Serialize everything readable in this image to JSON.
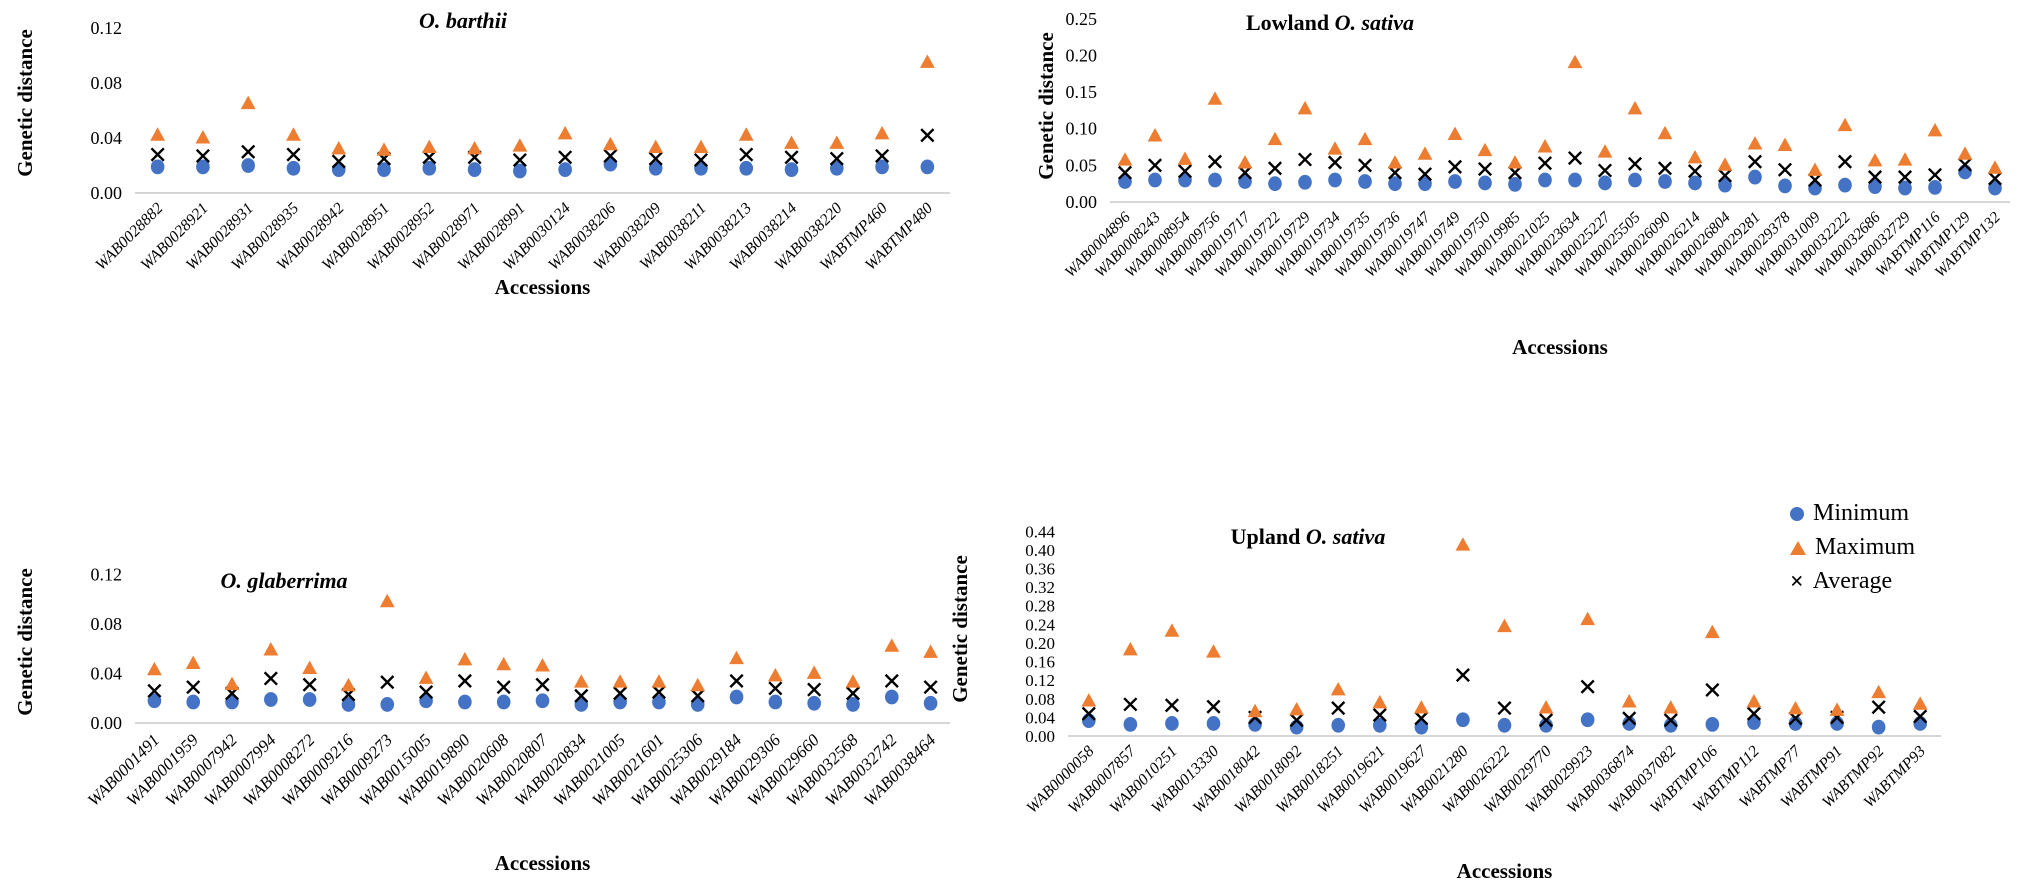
{
  "figure": {
    "description_visible_text_only": true
  },
  "colors": {
    "minimum": "#4472C4",
    "maximum": "#ED7D31",
    "average": "#000000",
    "axis_line": "#C9C9C9"
  },
  "legend": {
    "location": "top-right-of-upland-chart",
    "items": [
      {
        "label": "Minimum",
        "marker": "circle",
        "color": "#4472C4",
        "glyph": ""
      },
      {
        "label": "Maximum",
        "marker": "triangle",
        "color": "#ED7D31",
        "glyph": ""
      },
      {
        "label": "Average",
        "marker": "x",
        "color": "#000000",
        "glyph": "×"
      }
    ]
  },
  "chart_data": [
    {
      "id": "o-barthii",
      "type": "scatter",
      "title_plain": "",
      "title_italic": "O. barthii",
      "xlabel": "Accessions",
      "ylabel": "Genetic distance",
      "ylim": [
        0,
        0.131
      ],
      "yticks": [
        0.0,
        0.04,
        0.08,
        0.12
      ],
      "grid": false,
      "categories": [
        "WAB0028882",
        "WAB0028921",
        "WAB0028931",
        "WAB0028935",
        "WAB0028942",
        "WAB0028951",
        "WAB0028952",
        "WAB0028971",
        "WAB0028991",
        "WAB0030124",
        "WAB0038206",
        "WAB0038209",
        "WAB0038211",
        "WAB0038213",
        "WAB0038214",
        "WAB0038220",
        "WABTMP460",
        "WABTMP480"
      ],
      "series": [
        {
          "name": "Minimum",
          "marker": "circle",
          "color": "#4472C4",
          "values": [
            0.019,
            0.019,
            0.02,
            0.018,
            0.017,
            0.017,
            0.018,
            0.017,
            0.016,
            0.017,
            0.021,
            0.018,
            0.018,
            0.018,
            0.017,
            0.018,
            0.019,
            0.019
          ]
        },
        {
          "name": "Average",
          "marker": "x",
          "color": "#000000",
          "values": [
            0.028,
            0.027,
            0.03,
            0.028,
            0.023,
            0.025,
            0.026,
            0.026,
            0.024,
            0.026,
            0.027,
            0.025,
            0.024,
            0.028,
            0.026,
            0.025,
            0.027,
            0.042
          ]
        },
        {
          "name": "Maximum",
          "marker": "triangle",
          "color": "#ED7D31",
          "values": [
            0.042,
            0.04,
            0.065,
            0.042,
            0.032,
            0.031,
            0.033,
            0.032,
            0.034,
            0.043,
            0.035,
            0.033,
            0.033,
            0.042,
            0.036,
            0.036,
            0.043,
            0.095
          ]
        }
      ]
    },
    {
      "id": "lowland-o-sativa",
      "type": "scatter",
      "title_plain": "Lowland ",
      "title_italic": "O. sativa",
      "xlabel": "Accessions",
      "ylabel": "Genetic distance",
      "ylim": [
        0,
        0.262
      ],
      "yticks": [
        0.0,
        0.05,
        0.1,
        0.15,
        0.2,
        0.25
      ],
      "grid": false,
      "categories": [
        "WAB0004896",
        "WAB0008243",
        "WAB0008954",
        "WAB0009756",
        "WAB0019717",
        "WAB0019722",
        "WAB0019729",
        "WAB0019734",
        "WAB0019735",
        "WAB0019736",
        "WAB0019747",
        "WAB0019749",
        "WAB0019750",
        "WAB0019985",
        "WAB0021025",
        "WAB0023634",
        "WAB0025227",
        "WAB0025505",
        "WAB0026090",
        "WAB0026214",
        "WAB0026804",
        "WAB0029281",
        "WAB0029378",
        "WAB0031009",
        "WAB0032222",
        "WAB0032686",
        "WAB0032729",
        "WABTMP116",
        "WABTMP129",
        "WABTMP132"
      ],
      "series": [
        {
          "name": "Minimum",
          "marker": "circle",
          "color": "#4472C4",
          "values": [
            0.028,
            0.03,
            0.03,
            0.03,
            0.028,
            0.025,
            0.027,
            0.03,
            0.028,
            0.025,
            0.025,
            0.028,
            0.026,
            0.024,
            0.03,
            0.03,
            0.026,
            0.03,
            0.028,
            0.026,
            0.023,
            0.034,
            0.022,
            0.019,
            0.023,
            0.021,
            0.019,
            0.02,
            0.041,
            0.019
          ]
        },
        {
          "name": "Average",
          "marker": "x",
          "color": "#000000",
          "values": [
            0.04,
            0.05,
            0.042,
            0.055,
            0.04,
            0.046,
            0.058,
            0.054,
            0.05,
            0.04,
            0.038,
            0.048,
            0.045,
            0.04,
            0.053,
            0.06,
            0.043,
            0.052,
            0.046,
            0.042,
            0.036,
            0.055,
            0.044,
            0.03,
            0.055,
            0.034,
            0.034,
            0.037,
            0.051,
            0.032
          ]
        },
        {
          "name": "Maximum",
          "marker": "triangle",
          "color": "#ED7D31",
          "values": [
            0.057,
            0.09,
            0.058,
            0.14,
            0.053,
            0.085,
            0.127,
            0.072,
            0.085,
            0.053,
            0.065,
            0.092,
            0.07,
            0.053,
            0.075,
            0.19,
            0.068,
            0.127,
            0.093,
            0.06,
            0.05,
            0.079,
            0.077,
            0.043,
            0.104,
            0.056,
            0.057,
            0.097,
            0.065,
            0.046
          ]
        }
      ]
    },
    {
      "id": "o-glaberrima",
      "type": "scatter",
      "title_plain": "",
      "title_italic": "O. glaberrima",
      "xlabel": "Accessions",
      "ylabel": "Genetic distance",
      "ylim": [
        0,
        0.131
      ],
      "yticks": [
        0.0,
        0.04,
        0.08,
        0.12
      ],
      "grid": false,
      "categories": [
        "WAB0001491",
        "WAB0001959",
        "WAB0007942",
        "WAB0007994",
        "WAB0008272",
        "WAB0009216",
        "WAB0009273",
        "WAB0015005",
        "WAB0019890",
        "WAB0020608",
        "WAB0020807",
        "WAB0020834",
        "WAB0021005",
        "WAB0021601",
        "WAB0025306",
        "WAB0029184",
        "WAB0029306",
        "WAB0029660",
        "WAB0032568",
        "WAB0032742",
        "WAB0038464"
      ],
      "series": [
        {
          "name": "Minimum",
          "marker": "circle",
          "color": "#4472C4",
          "values": [
            0.018,
            0.017,
            0.017,
            0.019,
            0.019,
            0.015,
            0.015,
            0.018,
            0.017,
            0.017,
            0.018,
            0.015,
            0.017,
            0.017,
            0.015,
            0.021,
            0.017,
            0.016,
            0.015,
            0.021,
            0.016
          ]
        },
        {
          "name": "Average",
          "marker": "x",
          "color": "#000000",
          "values": [
            0.026,
            0.029,
            0.024,
            0.036,
            0.031,
            0.023,
            0.033,
            0.025,
            0.034,
            0.029,
            0.031,
            0.022,
            0.024,
            0.025,
            0.022,
            0.034,
            0.028,
            0.027,
            0.024,
            0.034,
            0.029
          ]
        },
        {
          "name": "Maximum",
          "marker": "triangle",
          "color": "#ED7D31",
          "values": [
            0.043,
            0.048,
            0.031,
            0.059,
            0.044,
            0.03,
            0.098,
            0.036,
            0.051,
            0.047,
            0.046,
            0.033,
            0.033,
            0.033,
            0.03,
            0.052,
            0.038,
            0.04,
            0.033,
            0.062,
            0.057
          ]
        }
      ]
    },
    {
      "id": "upland-o-sativa",
      "type": "scatter",
      "title_plain": "Upland ",
      "title_italic": "O. sativa",
      "xlabel": "Accessions",
      "ylabel": "Genetic distance",
      "ylim": [
        0,
        0.46
      ],
      "yticks": [
        0.0,
        0.04,
        0.08,
        0.12,
        0.16,
        0.2,
        0.24,
        0.28,
        0.32,
        0.36,
        0.4,
        0.44
      ],
      "grid": false,
      "legend_position": "top-right",
      "categories": [
        "WAB0000058",
        "WAB0007857",
        "WAB0010251",
        "WAB0013330",
        "WAB0018042",
        "WAB0018092",
        "WAB0018251",
        "WAB0019621",
        "WAB0019627",
        "WAB0021280",
        "WAB0026222",
        "WAB0029770",
        "WAB0029923",
        "WAB0036874",
        "WAB0037082",
        "WABTMP106",
        "WABTMP112",
        "WABTMP77",
        "WABTMP91",
        "WABTMP92",
        "WABTMP93"
      ],
      "series": [
        {
          "name": "Minimum",
          "marker": "circle",
          "color": "#4472C4",
          "values": [
            0.033,
            0.025,
            0.027,
            0.027,
            0.025,
            0.019,
            0.023,
            0.023,
            0.019,
            0.035,
            0.023,
            0.023,
            0.035,
            0.027,
            0.023,
            0.025,
            0.029,
            0.027,
            0.027,
            0.019,
            0.027
          ]
        },
        {
          "name": "Average",
          "marker": "x",
          "color": "#000000",
          "values": [
            0.048,
            0.068,
            0.066,
            0.063,
            0.04,
            0.034,
            0.06,
            0.045,
            0.038,
            0.131,
            0.06,
            0.034,
            0.106,
            0.038,
            0.034,
            0.099,
            0.048,
            0.038,
            0.04,
            0.062,
            0.042
          ]
        },
        {
          "name": "Maximum",
          "marker": "triangle",
          "color": "#ED7D31",
          "values": [
            0.075,
            0.185,
            0.225,
            0.18,
            0.052,
            0.056,
            0.099,
            0.071,
            0.06,
            0.41,
            0.235,
            0.06,
            0.25,
            0.073,
            0.06,
            0.222,
            0.073,
            0.058,
            0.055,
            0.093,
            0.068
          ]
        }
      ]
    }
  ]
}
